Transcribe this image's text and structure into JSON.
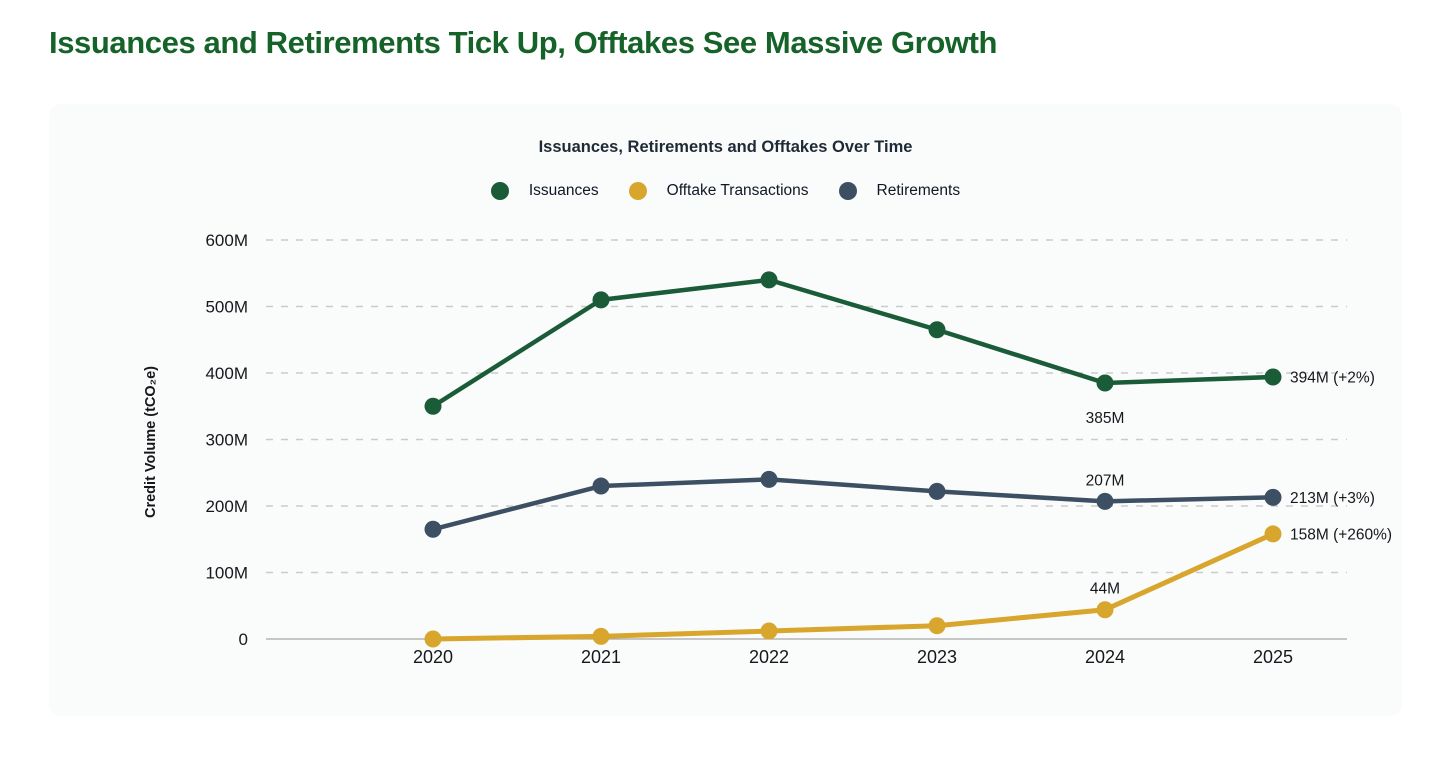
{
  "page": {
    "title": "Issuances and Retirements Tick Up, Offtakes See Massive Growth"
  },
  "colors": {
    "headline_green": "#166329",
    "panel_background": "#fafbfb",
    "chart_title_text": "#1f2a37",
    "axis_text": "#16181d",
    "gridline": "#cbcbcb",
    "zero_axis_line": "#a6a6a6",
    "issuances_green": "#1a5b38",
    "offtakes_gold": "#d9a62d",
    "retirements_navy": "#3d4f63"
  },
  "chart_data": {
    "type": "line",
    "title": "Issuances, Retirements and Offtakes Over Time",
    "xlabel": "",
    "ylabel": "Credit Volume (tCO₂e)",
    "x": [
      2020,
      2021,
      2022,
      2023,
      2024,
      2025
    ],
    "ylim_millions": [
      0,
      600
    ],
    "grid": "horizontal-dashed",
    "legend_position": "top-center",
    "yticks": [
      {
        "value": 0,
        "label": "0"
      },
      {
        "value": 100,
        "label": "100M"
      },
      {
        "value": 200,
        "label": "200M"
      },
      {
        "value": 300,
        "label": "300M"
      },
      {
        "value": 400,
        "label": "400M"
      },
      {
        "value": 500,
        "label": "500M"
      },
      {
        "value": 600,
        "label": "600M"
      }
    ],
    "series": [
      {
        "name": "Issuances",
        "color": "#1a5b38",
        "line_width": 4.5,
        "values_millions": [
          350,
          510,
          540,
          465,
          385,
          394
        ]
      },
      {
        "name": "Offtake Transactions",
        "color": "#d9a62d",
        "line_width": 5,
        "values_millions": [
          0,
          4,
          12,
          20,
          44,
          158
        ]
      },
      {
        "name": "Retirements",
        "color": "#3d4f63",
        "line_width": 4.5,
        "values_millions": [
          165,
          230,
          240,
          222,
          207,
          213
        ]
      }
    ],
    "annotations": [
      {
        "series": "Issuances",
        "year": 2024,
        "text": "385M",
        "placement": "below"
      },
      {
        "series": "Issuances",
        "year": 2025,
        "text": "394M (+2%)",
        "placement": "right"
      },
      {
        "series": "Retirements",
        "year": 2024,
        "text": "207M",
        "placement": "above"
      },
      {
        "series": "Retirements",
        "year": 2025,
        "text": "213M (+3%)",
        "placement": "right"
      },
      {
        "series": "Offtake Transactions",
        "year": 2024,
        "text": "44M",
        "placement": "above"
      },
      {
        "series": "Offtake Transactions",
        "year": 2025,
        "text": "158M (+260%)",
        "placement": "right"
      }
    ]
  }
}
